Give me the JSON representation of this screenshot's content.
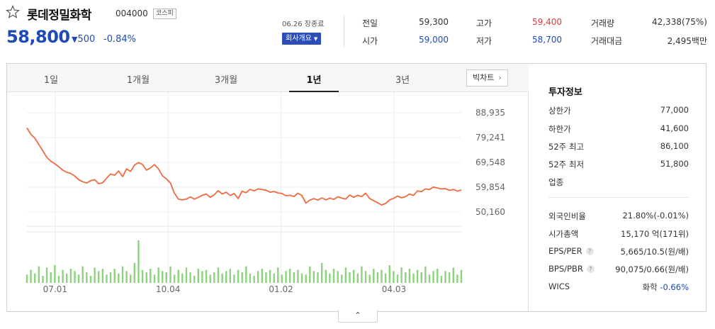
{
  "stock": {
    "name": "롯데정밀화학",
    "code": "004000",
    "market": "코스피",
    "price": "58,800",
    "change": "500",
    "change_pct": "-0.84%",
    "date_close": "06.26 장종료",
    "company_button": "회사개요"
  },
  "quote": {
    "prev_label": "전일",
    "prev_value": "59,300",
    "open_label": "시가",
    "open_value": "59,000",
    "high_label": "고가",
    "high_value": "59,400",
    "low_label": "저가",
    "low_value": "58,700",
    "volume_label": "거래량",
    "volume_value": "42,338(75%)",
    "amount_label": "거래대금",
    "amount_value": "2,495백만"
  },
  "tabs": [
    "1일",
    "1개월",
    "3개월",
    "1년",
    "3년"
  ],
  "active_tab": "1년",
  "candle_button": "빅차트",
  "info": {
    "title": "투자정보",
    "upper_limit_label": "상한가",
    "upper_limit_value": "77,000",
    "lower_limit_label": "하한가",
    "lower_limit_value": "41,600",
    "high52_label": "52주 최고",
    "high52_value": "86,100",
    "low52_label": "52주 최저",
    "low52_value": "51,800",
    "industry_label": "업종",
    "foreign_label": "외국인비율",
    "foreign_value": "21.80%(-0.01%)",
    "mcap_label": "시가총액",
    "mcap_value": "15,170 억(171위)",
    "eps_label": "EPS/PER",
    "eps_value": "5,665/10.5(원/배)",
    "bps_label": "BPS/PBR",
    "bps_value": "90,075/0.66(원/배)",
    "wics_label": "WICS",
    "wics_sector": "화학",
    "wics_change": "-0.66%"
  },
  "colors": {
    "accent_blue": "#1e4bb8",
    "up_red": "#e03a3a",
    "line": "#f06a40",
    "volume": "#8ed17e"
  },
  "chart_data": {
    "type": "line",
    "y_ticks": [
      "88,935",
      "79,241",
      "69,548",
      "59,854",
      "50,160"
    ],
    "y_tick_values": [
      88935,
      79241,
      69548,
      59854,
      50160
    ],
    "x_ticks": [
      "07.01",
      "10.04",
      "01.02",
      "04.03"
    ],
    "ylim": [
      50160,
      88935
    ],
    "series": [
      {
        "values": [
          83000,
          80500,
          79000,
          76500,
          74000,
          71500,
          70000,
          69000,
          67800,
          66500,
          65700,
          65200,
          64200,
          62800,
          62000,
          61500,
          62400,
          62800,
          61200,
          61600,
          63400,
          65000,
          64500,
          66200,
          64000,
          67000,
          66000,
          68500,
          69500,
          68700,
          66500,
          67400,
          68700,
          67000,
          64300,
          63100,
          61500,
          57500,
          55200,
          54900,
          55200,
          56100,
          55200,
          55900,
          56700,
          57200,
          55900,
          56900,
          58500,
          57200,
          57900,
          56600,
          57400,
          55400,
          58300,
          57700,
          59000,
          58400,
          59200,
          58900,
          58700,
          57900,
          58200,
          57600,
          57400,
          56500,
          56700,
          56200,
          57500,
          56600,
          53600,
          54800,
          55400,
          54800,
          55700,
          54900,
          55600,
          55100,
          56100,
          55600,
          55200,
          56800,
          55900,
          56700,
          56200,
          57500,
          55400,
          54600,
          53800,
          52900,
          53500,
          54900,
          55500,
          56400,
          55700,
          56200,
          57200,
          56600,
          58400,
          58100,
          59200,
          58900,
          59900,
          59500,
          59200,
          59300,
          58600,
          59000,
          58300,
          58800
        ]
      }
    ],
    "volume": {
      "values": [
        14,
        22,
        16,
        28,
        12,
        26,
        18,
        30,
        12,
        22,
        16,
        24,
        20,
        14,
        28,
        18,
        12,
        26,
        20,
        24,
        14,
        18,
        24,
        16,
        28,
        20,
        14,
        34,
        72,
        22,
        18,
        24,
        14,
        26,
        20,
        18,
        28,
        14,
        22,
        16,
        26,
        18,
        12,
        24,
        20,
        22,
        14,
        18,
        26,
        16,
        20,
        24,
        14,
        22,
        18,
        28,
        16,
        12,
        20,
        24,
        18,
        22,
        16,
        26,
        14,
        20,
        24,
        18,
        22,
        16,
        14,
        28,
        20,
        18,
        34,
        22,
        16,
        24,
        20,
        14,
        26,
        18,
        22,
        16,
        28,
        20,
        14,
        24,
        18,
        22,
        16,
        30,
        20,
        14,
        26,
        18,
        24,
        16,
        22,
        18,
        28,
        14,
        20,
        24,
        12,
        20,
        18,
        26,
        14,
        22
      ]
    }
  }
}
